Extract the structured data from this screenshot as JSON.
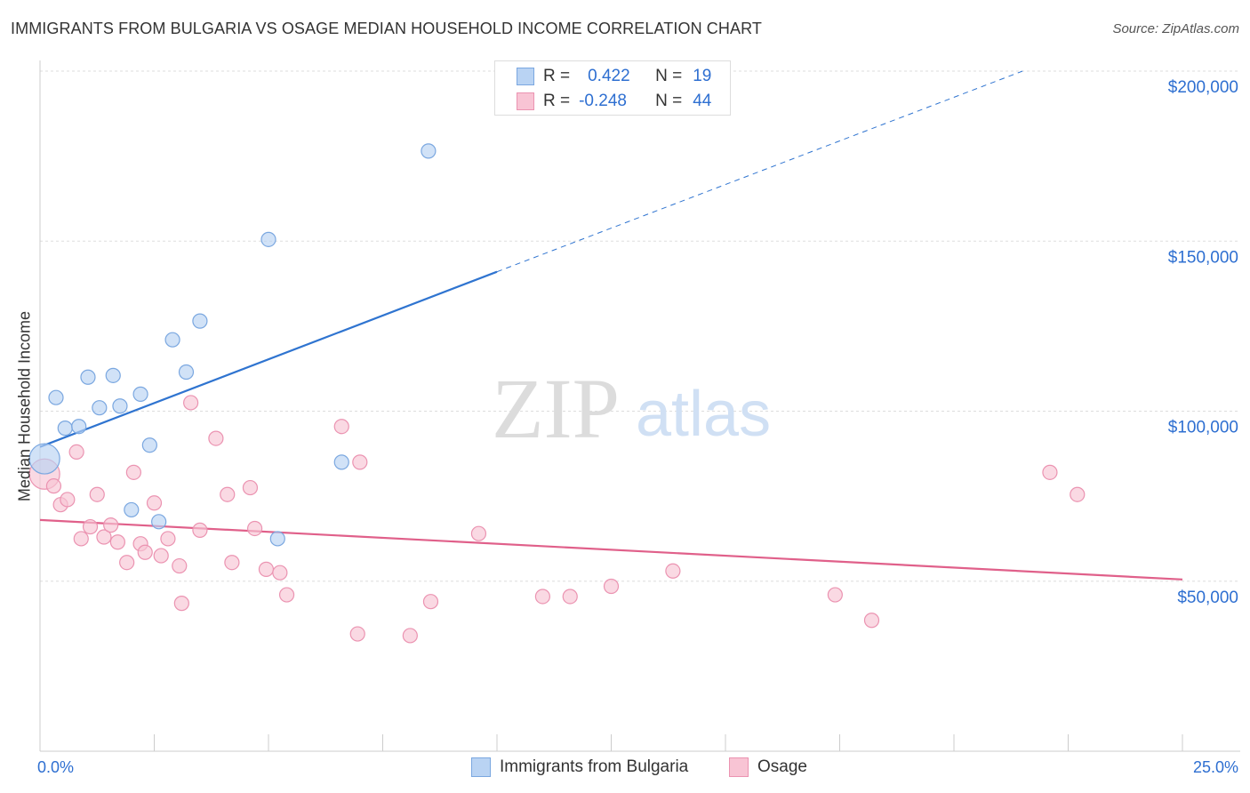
{
  "title": "IMMIGRANTS FROM BULGARIA VS OSAGE MEDIAN HOUSEHOLD INCOME CORRELATION CHART",
  "source": "Source: ZipAtlas.com",
  "watermark": {
    "zip": "ZIP",
    "atlas": "atlas"
  },
  "legend": {
    "rows": [
      {
        "r_label": "R =",
        "r_value": "0.422",
        "n_label": "N =",
        "n_value": "19"
      },
      {
        "r_label": "R =",
        "r_value": "-0.248",
        "n_label": "N =",
        "n_value": "44"
      }
    ]
  },
  "colors": {
    "blue_fill": "#b9d3f3",
    "blue_stroke": "#7aa7e0",
    "blue_line": "#2f74d0",
    "pink_fill": "#f8c4d4",
    "pink_stroke": "#eb93b1",
    "pink_line": "#e0608a",
    "axis_text": "#2e6fd1",
    "grid": "#dddddd"
  },
  "chart_data": {
    "type": "scatter",
    "title": "IMMIGRANTS FROM BULGARIA VS OSAGE MEDIAN HOUSEHOLD INCOME CORRELATION CHART",
    "xlabel": "",
    "ylabel": "Median Household Income",
    "xlim": [
      0,
      25
    ],
    "ylim": [
      0,
      200000
    ],
    "x_tick_labels": [
      "0.0%",
      "25.0%"
    ],
    "y_tick_values": [
      50000,
      100000,
      150000,
      200000
    ],
    "y_tick_labels": [
      "$50,000",
      "$100,000",
      "$150,000",
      "$200,000"
    ],
    "grid": true,
    "legend_placement": "bottom-center",
    "series": [
      {
        "name": "Immigrants from Bulgaria",
        "color": "#b9d3f3",
        "points": [
          [
            0.1,
            86000,
            "large"
          ],
          [
            0.35,
            104000
          ],
          [
            0.55,
            95000
          ],
          [
            0.85,
            95500
          ],
          [
            1.05,
            110000
          ],
          [
            1.3,
            101000
          ],
          [
            1.6,
            110500
          ],
          [
            1.75,
            101500
          ],
          [
            2.0,
            71000
          ],
          [
            2.2,
            105000
          ],
          [
            2.4,
            90000
          ],
          [
            2.6,
            67500
          ],
          [
            2.9,
            121000
          ],
          [
            3.2,
            111500
          ],
          [
            3.5,
            126500
          ],
          [
            5.0,
            150500
          ],
          [
            6.6,
            85000
          ],
          [
            5.2,
            62500
          ],
          [
            8.5,
            176500
          ]
        ],
        "trend": {
          "x_start": 0,
          "y_start": 89500,
          "x_solid_end": 10,
          "y_solid_end": 141000,
          "x_dash_end": 21.5,
          "y_dash_end": 200000
        }
      },
      {
        "name": "Osage",
        "color": "#f8c4d4",
        "points": [
          [
            0.1,
            81500,
            "large"
          ],
          [
            0.3,
            78000
          ],
          [
            0.45,
            72500
          ],
          [
            0.6,
            74000
          ],
          [
            0.8,
            88000
          ],
          [
            0.9,
            62500
          ],
          [
            1.1,
            66000
          ],
          [
            1.25,
            75500
          ],
          [
            1.4,
            63000
          ],
          [
            1.55,
            66500
          ],
          [
            1.7,
            61500
          ],
          [
            1.9,
            55500
          ],
          [
            2.05,
            82000
          ],
          [
            2.2,
            61000
          ],
          [
            2.3,
            58500
          ],
          [
            2.5,
            73000
          ],
          [
            2.65,
            57500
          ],
          [
            2.8,
            62500
          ],
          [
            3.05,
            54500
          ],
          [
            3.1,
            43500
          ],
          [
            3.3,
            102500
          ],
          [
            3.5,
            65000
          ],
          [
            3.85,
            92000
          ],
          [
            4.1,
            75500
          ],
          [
            4.2,
            55500
          ],
          [
            4.6,
            77500
          ],
          [
            4.7,
            65500
          ],
          [
            4.95,
            53500
          ],
          [
            5.25,
            52500
          ],
          [
            5.4,
            46000
          ],
          [
            6.6,
            95500
          ],
          [
            6.95,
            34500
          ],
          [
            7.0,
            85000
          ],
          [
            8.1,
            34000
          ],
          [
            8.55,
            44000
          ],
          [
            9.6,
            64000
          ],
          [
            11.0,
            45500
          ],
          [
            11.6,
            45500
          ],
          [
            12.5,
            48500
          ],
          [
            13.85,
            53000
          ],
          [
            17.4,
            46000
          ],
          [
            18.2,
            38500
          ],
          [
            22.1,
            82000
          ],
          [
            22.7,
            75500
          ]
        ],
        "trend": {
          "x_start": 0,
          "y_start": 68000,
          "x_end": 25,
          "y_end": 50500
        }
      }
    ]
  },
  "bottom_legend": {
    "items": [
      {
        "label": "Immigrants from Bulgaria"
      },
      {
        "label": "Osage"
      }
    ]
  }
}
